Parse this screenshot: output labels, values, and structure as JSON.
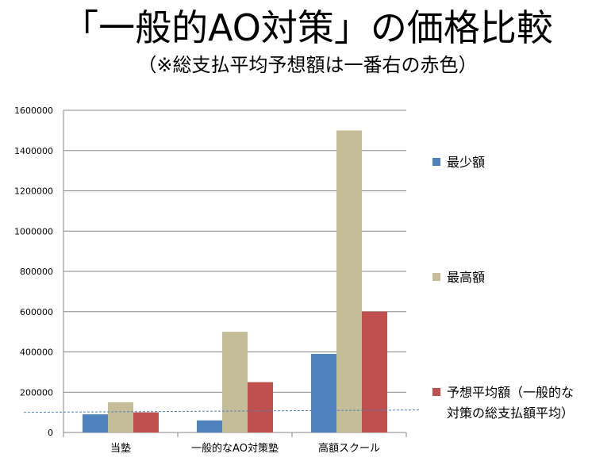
{
  "title": "「一般的AO対策」の価格比較",
  "subtitle": "（※総支払平均予想額は一番右の赤色）",
  "colors": {
    "min": "#4F81BD",
    "max": "#C4BD97",
    "avg": "#C0504D",
    "gridline": "#868686",
    "reference_line": "#4F81BD"
  },
  "chart_data": {
    "type": "bar",
    "categories": [
      "当塾",
      "一般的なAO対策塾",
      "高額スクール"
    ],
    "series": [
      {
        "name": "最少額",
        "values": [
          90000,
          60000,
          390000
        ]
      },
      {
        "name": "最高額",
        "values": [
          150000,
          500000,
          1500000
        ]
      },
      {
        "name": "予想平均額（一般的な\n対策の総支払額平均）",
        "values": [
          100000,
          250000,
          600000
        ]
      }
    ],
    "ylim": [
      0,
      1600000
    ],
    "yticks": [
      "0",
      "200000",
      "400000",
      "600000",
      "800000",
      "1000000",
      "1200000",
      "1400000",
      "1600000"
    ],
    "reference_value": 100000,
    "grid": true,
    "legend_position": "right"
  }
}
